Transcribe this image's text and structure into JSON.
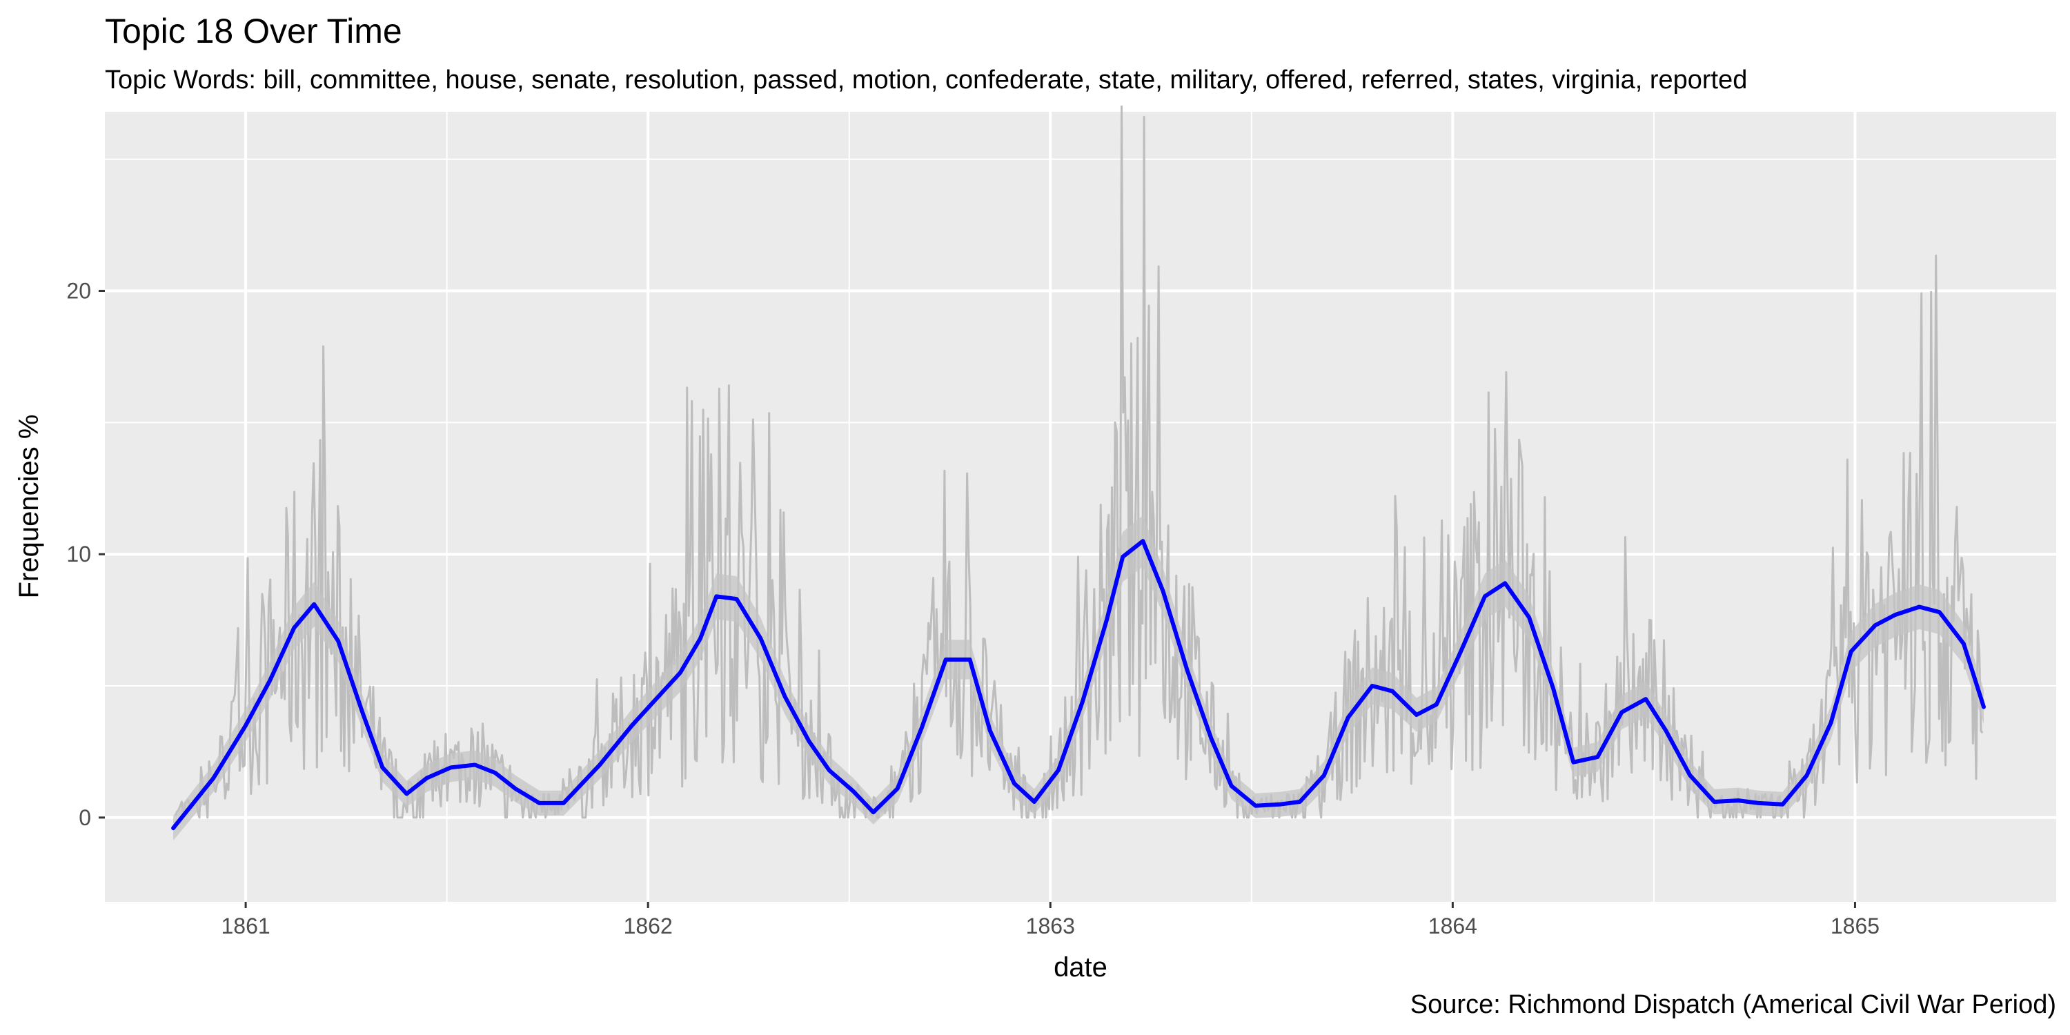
{
  "chart_data": {
    "type": "line",
    "title": "Topic 18 Over Time",
    "subtitle": "Topic Words: bill, committee, house, senate, resolution, passed, motion, confederate, state, military, offered, referred, states, virginia, reported",
    "caption": "Source: Richmond Dispatch (Americal Civil War Period)",
    "xlabel": "date",
    "ylabel": "Frequencies %",
    "x_ticks": [
      "1861",
      "1862",
      "1863",
      "1864",
      "1865"
    ],
    "y_ticks": [
      0,
      10,
      20
    ],
    "xlim": [
      1860.65,
      1865.5
    ],
    "ylim": [
      -3.2,
      26.8
    ],
    "grid": true,
    "colors": {
      "panel": "#ebebeb",
      "grid": "#ffffff",
      "raw_series": "#bdbdbd",
      "smooth_series": "#0000ff",
      "ribbon": "#c4c4c4"
    },
    "series": [
      {
        "role": "smoothed",
        "points": [
          [
            1860.82,
            -0.4
          ],
          [
            1860.92,
            1.5
          ],
          [
            1861.0,
            3.5
          ],
          [
            1861.06,
            5.2
          ],
          [
            1861.12,
            7.2
          ],
          [
            1861.17,
            8.1
          ],
          [
            1861.23,
            6.7
          ],
          [
            1861.29,
            4.0
          ],
          [
            1861.34,
            1.9
          ],
          [
            1861.4,
            0.9
          ],
          [
            1861.45,
            1.5
          ],
          [
            1861.51,
            1.9
          ],
          [
            1861.57,
            2.0
          ],
          [
            1861.62,
            1.7
          ],
          [
            1861.67,
            1.1
          ],
          [
            1861.73,
            0.55
          ],
          [
            1861.79,
            0.55
          ],
          [
            1861.88,
            2.0
          ],
          [
            1861.96,
            3.5
          ],
          [
            1862.02,
            4.5
          ],
          [
            1862.08,
            5.5
          ],
          [
            1862.13,
            6.8
          ],
          [
            1862.17,
            8.4
          ],
          [
            1862.22,
            8.3
          ],
          [
            1862.28,
            6.8
          ],
          [
            1862.34,
            4.6
          ],
          [
            1862.4,
            2.9
          ],
          [
            1862.45,
            1.8
          ],
          [
            1862.51,
            1.0
          ],
          [
            1862.56,
            0.2
          ],
          [
            1862.62,
            1.1
          ],
          [
            1862.68,
            3.4
          ],
          [
            1862.74,
            6.0
          ],
          [
            1862.8,
            6.0
          ],
          [
            1862.85,
            3.3
          ],
          [
            1862.91,
            1.3
          ],
          [
            1862.96,
            0.6
          ],
          [
            1863.02,
            1.8
          ],
          [
            1863.08,
            4.4
          ],
          [
            1863.14,
            7.5
          ],
          [
            1863.18,
            9.9
          ],
          [
            1863.23,
            10.5
          ],
          [
            1863.28,
            8.6
          ],
          [
            1863.34,
            5.6
          ],
          [
            1863.4,
            3.0
          ],
          [
            1863.45,
            1.2
          ],
          [
            1863.51,
            0.45
          ],
          [
            1863.57,
            0.5
          ],
          [
            1863.62,
            0.6
          ],
          [
            1863.68,
            1.6
          ],
          [
            1863.74,
            3.8
          ],
          [
            1863.8,
            5.0
          ],
          [
            1863.85,
            4.8
          ],
          [
            1863.91,
            3.9
          ],
          [
            1863.96,
            4.3
          ],
          [
            1864.02,
            6.3
          ],
          [
            1864.08,
            8.4
          ],
          [
            1864.13,
            8.9
          ],
          [
            1864.19,
            7.6
          ],
          [
            1864.25,
            4.9
          ],
          [
            1864.3,
            2.1
          ],
          [
            1864.36,
            2.3
          ],
          [
            1864.42,
            4.0
          ],
          [
            1864.48,
            4.5
          ],
          [
            1864.53,
            3.3
          ],
          [
            1864.59,
            1.6
          ],
          [
            1864.65,
            0.6
          ],
          [
            1864.71,
            0.65
          ],
          [
            1864.76,
            0.55
          ],
          [
            1864.82,
            0.5
          ],
          [
            1864.88,
            1.6
          ],
          [
            1864.94,
            3.6
          ],
          [
            1864.99,
            6.3
          ],
          [
            1865.05,
            7.3
          ],
          [
            1865.1,
            7.7
          ],
          [
            1865.16,
            8.0
          ],
          [
            1865.21,
            7.8
          ],
          [
            1865.27,
            6.6
          ],
          [
            1865.32,
            4.2
          ]
        ]
      }
    ]
  }
}
